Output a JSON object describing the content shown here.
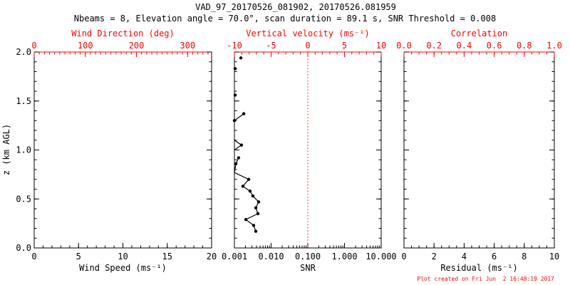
{
  "header": {
    "title": "VAD_97_20170526_081902, 20170526.081959",
    "subtitle": "Nbeams = 8, Elevation angle = 70.0°, scan duration = 89.1 s, SNR Threshold = 0.008"
  },
  "footer": {
    "created": "Plot created on Fri Jun  2 16:48:19 2017"
  },
  "colors": {
    "axis": "#000000",
    "accent_red": "#ff0000",
    "background": "#ffffff",
    "data": "#000000"
  },
  "chart_data": {
    "type": "line",
    "title": "VAD_97_20170526_081902, 20170526.081959",
    "ylabel": "z (km AGL)",
    "y_axis": {
      "min": 0.0,
      "max": 2.0,
      "minor_step": 0.1,
      "majors": [
        {
          "v": 0.0,
          "t": "0.0"
        },
        {
          "v": 0.5,
          "t": "0.5"
        },
        {
          "v": 1.0,
          "t": "1.0"
        },
        {
          "v": 1.5,
          "t": "1.5"
        },
        {
          "v": 2.0,
          "t": "2.0"
        }
      ]
    },
    "panels": [
      {
        "id": "wind-speed",
        "bottom_axis": {
          "label": "Wind Speed (ms⁻¹)",
          "min": 0,
          "max": 20,
          "minor_step": 1,
          "majors": [
            {
              "v": 0,
              "t": "0"
            },
            {
              "v": 5,
              "t": "5"
            },
            {
              "v": 10,
              "t": "10"
            },
            {
              "v": 15,
              "t": "15"
            },
            {
              "v": 20,
              "t": "20"
            }
          ]
        },
        "top_axis": {
          "label": "Wind Direction (deg)",
          "min": 0,
          "max": 347,
          "minor_step": 10,
          "majors": [
            {
              "v": 0,
              "t": "0"
            },
            {
              "v": 100,
              "t": "100"
            },
            {
              "v": 200,
              "t": "200"
            },
            {
              "v": 300,
              "t": "300"
            }
          ]
        },
        "profile": null
      },
      {
        "id": "snr",
        "bottom_axis": {
          "label": "SNR",
          "log": true,
          "min": 0.001,
          "max": 10,
          "majors": [
            {
              "v": 0.001,
              "t": "0.001"
            },
            {
              "v": 0.01,
              "t": "0.010"
            },
            {
              "v": 0.1,
              "t": "0.100"
            },
            {
              "v": 1,
              "t": "1.000"
            },
            {
              "v": 10,
              "t": "10.000"
            }
          ]
        },
        "top_axis": {
          "label": "Vertical velocity (ms⁻¹)",
          "min": -10,
          "max": 10,
          "minor_step": 1,
          "majors": [
            {
              "v": -10,
              "t": "-10"
            },
            {
              "v": -5,
              "t": "-5"
            },
            {
              "v": 0,
              "t": "0"
            },
            {
              "v": 5,
              "t": "5"
            },
            {
              "v": 10,
              "t": "10"
            }
          ]
        },
        "ref_line": {
          "value": 0.1,
          "style": "dotted"
        },
        "profile": {
          "markers": [
            [
              0.0015,
              1.94
            ],
            [
              0.00105,
              1.83
            ],
            [
              0.00105,
              1.56
            ],
            [
              0.0018,
              1.37
            ],
            [
              0.001,
              1.3
            ],
            [
              0.00156,
              1.05
            ],
            [
              0.0013,
              0.92
            ],
            [
              0.0011,
              0.86
            ],
            [
              0.00245,
              0.7
            ],
            [
              0.0017,
              0.63
            ],
            [
              0.00267,
              0.58
            ],
            [
              0.0032,
              0.53
            ],
            [
              0.00457,
              0.47
            ],
            [
              0.00383,
              0.41
            ],
            [
              0.00437,
              0.35
            ],
            [
              0.00205,
              0.29
            ],
            [
              0.00334,
              0.23
            ],
            [
              0.00383,
              0.17
            ]
          ],
          "segments": [
            [
              [
                0.0018,
                1.37
              ],
              [
                0.001,
                1.3
              ]
            ],
            [
              [
                0.001,
                1.1
              ],
              [
                0.00156,
                1.05
              ],
              [
                0.001,
                1.0
              ]
            ],
            [
              [
                0.0013,
                0.92
              ],
              [
                0.0011,
                0.86
              ],
              [
                0.001,
                0.77
              ],
              [
                0.00245,
                0.7
              ],
              [
                0.0017,
                0.63
              ],
              [
                0.00267,
                0.58
              ],
              [
                0.0032,
                0.53
              ],
              [
                0.00457,
                0.47
              ],
              [
                0.00383,
                0.41
              ],
              [
                0.00437,
                0.35
              ],
              [
                0.00205,
                0.29
              ],
              [
                0.00334,
                0.23
              ],
              [
                0.00383,
                0.17
              ]
            ]
          ]
        }
      },
      {
        "id": "residual",
        "bottom_axis": {
          "label": "Residual (ms⁻¹)",
          "min": 0,
          "max": 10,
          "minor_step": 0.5,
          "majors": [
            {
              "v": 0,
              "t": "0"
            },
            {
              "v": 2,
              "t": "2"
            },
            {
              "v": 4,
              "t": "4"
            },
            {
              "v": 6,
              "t": "6"
            },
            {
              "v": 8,
              "t": "8"
            },
            {
              "v": 10,
              "t": "10"
            }
          ]
        },
        "top_axis": {
          "label": "Correlation",
          "min": 0,
          "max": 1,
          "minor_step": 0.05,
          "majors": [
            {
              "v": 0.0,
              "t": "0.0"
            },
            {
              "v": 0.2,
              "t": "0.2"
            },
            {
              "v": 0.4,
              "t": "0.4"
            },
            {
              "v": 0.6,
              "t": "0.6"
            },
            {
              "v": 0.8,
              "t": "0.8"
            },
            {
              "v": 1.0,
              "t": "1.0"
            }
          ]
        },
        "profile": null
      }
    ]
  }
}
